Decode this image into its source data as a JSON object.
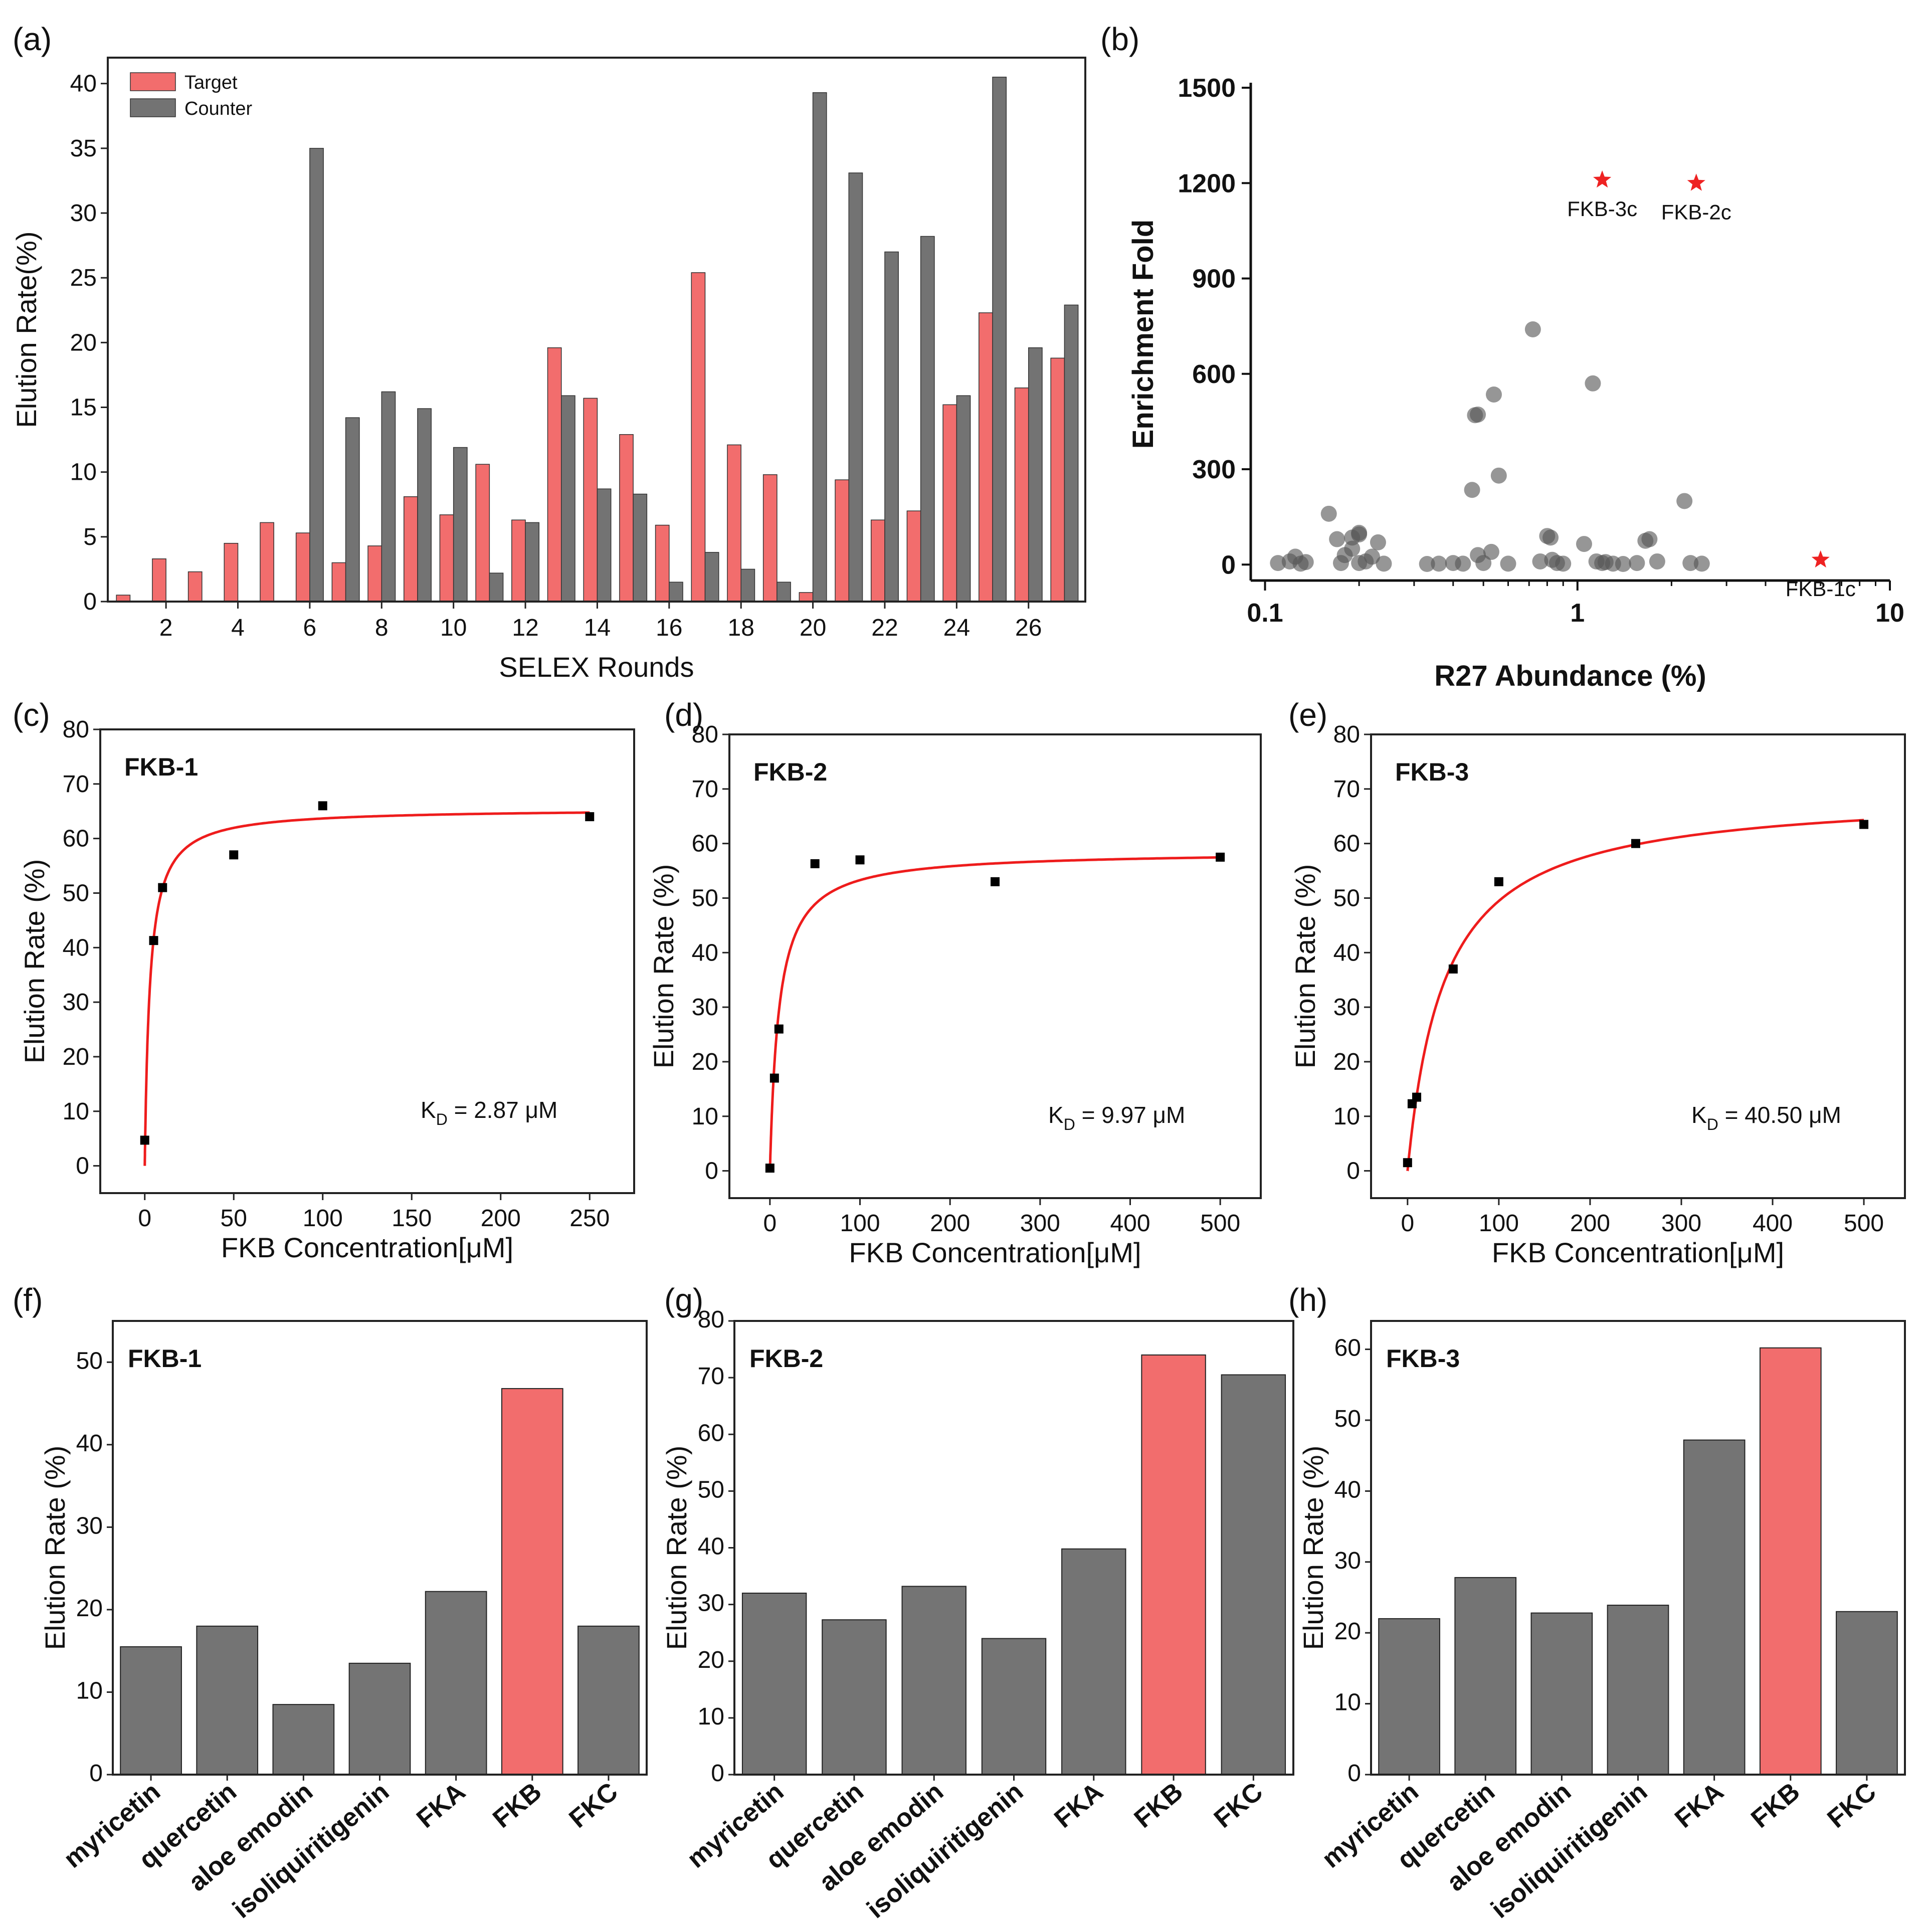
{
  "chart_data": [
    {
      "id": "a",
      "panel_label": "(a)",
      "type": "bar",
      "xlabel": "SELEX Rounds",
      "ylabel": "Elution Rate(%)",
      "ylim": [
        0,
        42
      ],
      "yticks": [
        0,
        5,
        10,
        15,
        20,
        25,
        30,
        35,
        40
      ],
      "xtick_labels": [
        "2",
        "4",
        "6",
        "8",
        "10",
        "12",
        "14",
        "16",
        "18",
        "20",
        "22",
        "24",
        "26"
      ],
      "categories": [
        1,
        2,
        3,
        4,
        5,
        6,
        7,
        8,
        9,
        10,
        11,
        12,
        13,
        14,
        15,
        16,
        17,
        18,
        19,
        20,
        21,
        22,
        23,
        24,
        25,
        26,
        27
      ],
      "legend": [
        "Target",
        "Counter"
      ],
      "legend_position": "top-left",
      "series": [
        {
          "name": "Target",
          "color": "#f26d6d",
          "values": [
            0.5,
            3.3,
            2.3,
            4.5,
            6.1,
            5.3,
            3.0,
            4.3,
            8.1,
            6.7,
            10.6,
            6.3,
            19.6,
            15.7,
            12.9,
            5.9,
            25.4,
            12.1,
            9.8,
            0.7,
            9.4,
            6.3,
            7.0,
            15.2,
            22.3,
            16.5,
            18.8
          ]
        },
        {
          "name": "Counter",
          "color": "#737373",
          "values": [
            0,
            0,
            0,
            0,
            0,
            35.0,
            14.2,
            16.2,
            14.9,
            11.9,
            2.2,
            6.1,
            15.9,
            8.7,
            8.3,
            1.5,
            3.8,
            2.5,
            1.5,
            39.3,
            33.1,
            27.0,
            28.2,
            15.9,
            40.5,
            19.6,
            22.9
          ]
        }
      ]
    },
    {
      "id": "b",
      "panel_label": "(b)",
      "type": "scatter",
      "xscale": "log",
      "xlabel": "R27 Abundance (%)",
      "ylabel": "Enrichment Fold",
      "xlim": [
        0.09,
        10
      ],
      "ylim": [
        -50,
        1500
      ],
      "yticks": [
        0,
        300,
        600,
        900,
        1200,
        1500
      ],
      "xticks": [
        0.1,
        1,
        10
      ],
      "xtick_labels": [
        "0.1",
        "1",
        "10"
      ],
      "points": [
        [
          0.11,
          5
        ],
        [
          0.12,
          10
        ],
        [
          0.125,
          25
        ],
        [
          0.13,
          3
        ],
        [
          0.135,
          8
        ],
        [
          0.16,
          160
        ],
        [
          0.17,
          80
        ],
        [
          0.175,
          5
        ],
        [
          0.18,
          30
        ],
        [
          0.19,
          50
        ],
        [
          0.19,
          85
        ],
        [
          0.2,
          100
        ],
        [
          0.2,
          95
        ],
        [
          0.2,
          5
        ],
        [
          0.21,
          10
        ],
        [
          0.22,
          25
        ],
        [
          0.23,
          70
        ],
        [
          0.24,
          3
        ],
        [
          0.33,
          2
        ],
        [
          0.36,
          3
        ],
        [
          0.4,
          5
        ],
        [
          0.43,
          3
        ],
        [
          0.46,
          235
        ],
        [
          0.47,
          470
        ],
        [
          0.48,
          472
        ],
        [
          0.48,
          30
        ],
        [
          0.5,
          5
        ],
        [
          0.53,
          40
        ],
        [
          0.54,
          535
        ],
        [
          0.56,
          280
        ],
        [
          0.6,
          3
        ],
        [
          0.72,
          740
        ],
        [
          0.76,
          10
        ],
        [
          0.8,
          90
        ],
        [
          0.82,
          85
        ],
        [
          0.83,
          15
        ],
        [
          0.86,
          5
        ],
        [
          0.9,
          3
        ],
        [
          1.05,
          65
        ],
        [
          1.12,
          570
        ],
        [
          1.15,
          10
        ],
        [
          1.2,
          5
        ],
        [
          1.23,
          8
        ],
        [
          1.3,
          3
        ],
        [
          1.4,
          2
        ],
        [
          1.55,
          5
        ],
        [
          1.65,
          75
        ],
        [
          1.7,
          80
        ],
        [
          1.8,
          10
        ],
        [
          2.2,
          200
        ],
        [
          2.3,
          5
        ],
        [
          2.5,
          3
        ]
      ],
      "highlights": [
        {
          "label": "FKB-3c",
          "x": 1.2,
          "y": 1210
        },
        {
          "label": "FKB-2c",
          "x": 2.4,
          "y": 1200
        },
        {
          "label": "FKB-1c",
          "x": 6.0,
          "y": 15
        }
      ]
    },
    {
      "id": "c",
      "panel_label": "(c)",
      "type": "scatter",
      "title": "FKB-1",
      "xlabel": "FKB Concentration[μM]",
      "ylabel": "Elution Rate (%)",
      "xlim": [
        -25,
        275
      ],
      "ylim": [
        -5,
        80
      ],
      "xticks": [
        0,
        50,
        100,
        150,
        200,
        250
      ],
      "yticks": [
        0,
        10,
        20,
        30,
        40,
        50,
        60,
        70,
        80
      ],
      "x": [
        0,
        5,
        10,
        50,
        100,
        250
      ],
      "y": [
        4.7,
        41.3,
        51.0,
        57.0,
        66.0,
        64.0
      ],
      "fit": {
        "model": "Bmax*x/(Kd+x)",
        "Bmax": 65.5,
        "Kd": 2.87
      },
      "kd_prefix": "K",
      "kd_sub": "D",
      "kd_suffix": " = 2.87 μM"
    },
    {
      "id": "d",
      "panel_label": "(d)",
      "type": "scatter",
      "title": "FKB-2",
      "xlabel": "FKB Concentration[μM]",
      "ylabel": "Elution Rate (%)",
      "xlim": [
        -45,
        545
      ],
      "ylim": [
        -5,
        80
      ],
      "xticks": [
        0,
        100,
        200,
        300,
        400,
        500
      ],
      "yticks": [
        0,
        10,
        20,
        30,
        40,
        50,
        60,
        70,
        80
      ],
      "x": [
        0,
        5,
        10,
        50,
        100,
        250,
        500
      ],
      "y": [
        0.5,
        17.0,
        26.0,
        56.3,
        57.0,
        53.0,
        57.5
      ],
      "fit": {
        "model": "Bmax*x/(Kd+x)",
        "Bmax": 58.6,
        "Kd": 9.97
      },
      "kd_prefix": "K",
      "kd_sub": "D",
      "kd_suffix": " = 9.97 μM"
    },
    {
      "id": "e",
      "panel_label": "(e)",
      "type": "scatter",
      "title": "FKB-3",
      "xlabel": "FKB Concentration[μM]",
      "ylabel": "Elution Rate (%)",
      "xlim": [
        -40,
        545
      ],
      "ylim": [
        -5,
        80
      ],
      "xticks": [
        0,
        100,
        200,
        300,
        400,
        500
      ],
      "yticks": [
        0,
        10,
        20,
        30,
        40,
        50,
        60,
        70,
        80
      ],
      "x": [
        0,
        5,
        10,
        50,
        100,
        250,
        500
      ],
      "y": [
        1.5,
        12.3,
        13.5,
        37.0,
        53.0,
        60.0,
        63.5
      ],
      "fit": {
        "model": "Bmax*x/(Kd+x)",
        "Bmax": 69.5,
        "Kd": 40.5
      },
      "kd_prefix": "K",
      "kd_sub": "D",
      "kd_suffix": " = 40.50 μM"
    },
    {
      "id": "f",
      "panel_label": "(f)",
      "type": "bar",
      "title": "FKB-1",
      "ylabel": "Elution Rate (%)",
      "ylim": [
        0,
        55
      ],
      "yticks": [
        0,
        10,
        20,
        30,
        40,
        50
      ],
      "categories": [
        "myricetin",
        "quercetin",
        "aloe emodin",
        "isoliquiritigenin",
        "FKA",
        "FKB",
        "FKC"
      ],
      "values": [
        15.5,
        18.0,
        8.5,
        13.5,
        22.2,
        46.8,
        18.0
      ],
      "highlight_index": 5
    },
    {
      "id": "g",
      "panel_label": "(g)",
      "type": "bar",
      "title": "FKB-2",
      "ylabel": "Elution Rate (%)",
      "ylim": [
        0,
        80
      ],
      "yticks": [
        0,
        10,
        20,
        30,
        40,
        50,
        60,
        70,
        80
      ],
      "categories": [
        "myricetin",
        "quercetin",
        "aloe emodin",
        "isoliquiritigenin",
        "FKA",
        "FKB",
        "FKC"
      ],
      "values": [
        32.0,
        27.3,
        33.2,
        24.0,
        39.8,
        74.0,
        70.5
      ],
      "highlight_index": 5
    },
    {
      "id": "h",
      "panel_label": "(h)",
      "type": "bar",
      "title": "FKB-3",
      "ylabel": "Elution Rate (%)",
      "ylim": [
        0,
        64
      ],
      "yticks": [
        0,
        10,
        20,
        30,
        40,
        50,
        60
      ],
      "categories": [
        "myricetin",
        "quercetin",
        "aloe emodin",
        "isoliquiritigenin",
        "FKA",
        "FKB",
        "FKC"
      ],
      "values": [
        22.0,
        27.8,
        22.8,
        23.9,
        47.2,
        60.2,
        23.0
      ],
      "highlight_index": 5
    }
  ],
  "colors": {
    "target": "#f26d6d",
    "counter": "#737373",
    "bar_gray": "#747474",
    "bar_red": "#f26d6d",
    "fit_line": "#ee1c1c",
    "star": "#ee2222"
  }
}
